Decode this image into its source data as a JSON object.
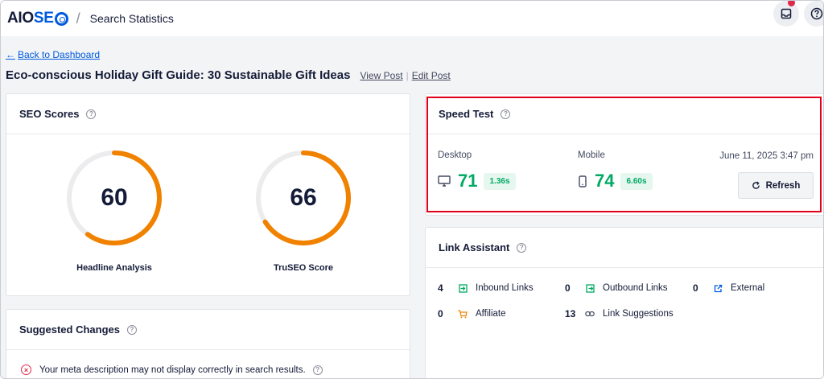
{
  "header": {
    "logo_left": "AIO",
    "logo_right": "SE",
    "page_title": "Search Statistics",
    "separator": "/"
  },
  "nav": {
    "back_link": "Back to Dashboard"
  },
  "post": {
    "title": "Eco-conscious Holiday Gift Guide: 30 Sustainable Gift Ideas",
    "view_post": "View Post",
    "edit_post": "Edit Post",
    "link_separator": "|"
  },
  "seo_scores": {
    "title": "SEO Scores",
    "scores": [
      {
        "label": "Headline Analysis",
        "value": "60",
        "fraction": 0.6
      },
      {
        "label": "TruSEO Score",
        "value": "66",
        "fraction": 0.66
      }
    ]
  },
  "suggested_changes": {
    "title": "Suggested Changes",
    "items": [
      {
        "text": "Your meta description may not display correctly in search results."
      }
    ]
  },
  "speed_test": {
    "title": "Speed Test",
    "desktop_label": "Desktop",
    "desktop_score": "71",
    "desktop_time": "1.36s",
    "mobile_label": "Mobile",
    "mobile_score": "74",
    "mobile_time": "6.60s",
    "date": "June 11, 2025 3:47 pm",
    "refresh_label": "Refresh"
  },
  "link_assistant": {
    "title": "Link Assistant",
    "items": [
      {
        "count": "4",
        "label": "Inbound Links",
        "icon": "inbound-link-icon"
      },
      {
        "count": "0",
        "label": "Outbound Links",
        "icon": "outbound-link-icon"
      },
      {
        "count": "0",
        "label": "External",
        "icon": "external-link-icon"
      },
      {
        "count": "0",
        "label": "Affiliate",
        "icon": "cart-icon"
      },
      {
        "count": "13",
        "label": "Link Suggestions",
        "icon": "chain-link-icon"
      }
    ]
  },
  "colors": {
    "accent_blue": "#005ae0",
    "score_orange": "#f18200",
    "good_green": "#00aa63",
    "error_red": "#df2a4a",
    "highlight_red": "#e0001b"
  }
}
